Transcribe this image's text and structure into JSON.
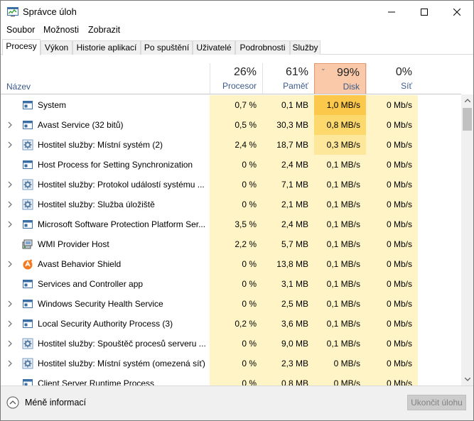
{
  "window": {
    "title": "Správce úloh"
  },
  "menu": [
    {
      "label": "Soubor"
    },
    {
      "label": "Možnosti"
    },
    {
      "label": "Zobrazit"
    }
  ],
  "tabs": [
    {
      "label": "Procesy",
      "active": true
    },
    {
      "label": "Výkon"
    },
    {
      "label": "Historie aplikací"
    },
    {
      "label": "Po spuštění"
    },
    {
      "label": "Uživatelé"
    },
    {
      "label": "Podrobnosti"
    },
    {
      "label": "Služby"
    }
  ],
  "columns": {
    "name": "Název",
    "cpu": {
      "pct": "26%",
      "label": "Procesor"
    },
    "mem": {
      "pct": "61%",
      "label": "Paměť"
    },
    "disk": {
      "pct": "99%",
      "label": "Disk"
    },
    "net": {
      "pct": "0%",
      "label": "Síť"
    }
  },
  "rows": [
    {
      "name": "System",
      "expand": false,
      "icon": "window-icon",
      "cpu": "0,7 %",
      "mem": "0,1 MB",
      "disk": "1,0 MB/s",
      "net": "0 Mb/s",
      "diskLevel": 3
    },
    {
      "name": "Avast Service (32 bitů)",
      "expand": true,
      "icon": "window-icon",
      "cpu": "0,5 %",
      "mem": "30,3 MB",
      "disk": "0,8 MB/s",
      "net": "0 Mb/s",
      "diskLevel": 2
    },
    {
      "name": "Hostitel služby: Místní systém (2)",
      "expand": true,
      "icon": "gear-icon",
      "cpu": "2,4 %",
      "mem": "18,7 MB",
      "disk": "0,3 MB/s",
      "net": "0 Mb/s",
      "diskLevel": 1
    },
    {
      "name": "Host Process for Setting Synchronization",
      "expand": false,
      "icon": "window-icon",
      "cpu": "0 %",
      "mem": "2,4 MB",
      "disk": "0,1 MB/s",
      "net": "0 Mb/s",
      "diskLevel": 0
    },
    {
      "name": "Hostitel služby: Protokol událostí systému ...",
      "expand": true,
      "icon": "gear-icon",
      "cpu": "0 %",
      "mem": "7,1 MB",
      "disk": "0,1 MB/s",
      "net": "0 Mb/s",
      "diskLevel": 0
    },
    {
      "name": "Hostitel služby: Služba úložiště",
      "expand": true,
      "icon": "gear-icon",
      "cpu": "0 %",
      "mem": "2,1 MB",
      "disk": "0,1 MB/s",
      "net": "0 Mb/s",
      "diskLevel": 0
    },
    {
      "name": "Microsoft Software Protection Platform Ser...",
      "expand": true,
      "icon": "window-icon",
      "cpu": "3,5 %",
      "mem": "2,4 MB",
      "disk": "0,1 MB/s",
      "net": "0 Mb/s",
      "diskLevel": 0
    },
    {
      "name": "WMI Provider Host",
      "expand": false,
      "icon": "wmi-icon",
      "cpu": "2,2 %",
      "mem": "5,7 MB",
      "disk": "0,1 MB/s",
      "net": "0 Mb/s",
      "diskLevel": 0
    },
    {
      "name": "Avast Behavior Shield",
      "expand": true,
      "icon": "avast-icon",
      "cpu": "0 %",
      "mem": "13,8 MB",
      "disk": "0,1 MB/s",
      "net": "0 Mb/s",
      "diskLevel": 0
    },
    {
      "name": "Services and Controller app",
      "expand": false,
      "icon": "window-icon",
      "cpu": "0 %",
      "mem": "3,1 MB",
      "disk": "0,1 MB/s",
      "net": "0 Mb/s",
      "diskLevel": 0
    },
    {
      "name": "Windows Security Health Service",
      "expand": true,
      "icon": "window-icon",
      "cpu": "0 %",
      "mem": "2,5 MB",
      "disk": "0,1 MB/s",
      "net": "0 Mb/s",
      "diskLevel": 0
    },
    {
      "name": "Local Security Authority Process (3)",
      "expand": true,
      "icon": "window-icon",
      "cpu": "0,2 %",
      "mem": "3,6 MB",
      "disk": "0,1 MB/s",
      "net": "0 Mb/s",
      "diskLevel": 0
    },
    {
      "name": "Hostitel služby: Spouštěč procesů serveru ...",
      "expand": true,
      "icon": "gear-icon",
      "cpu": "0 %",
      "mem": "9,0 MB",
      "disk": "0,1 MB/s",
      "net": "0 Mb/s",
      "diskLevel": 0
    },
    {
      "name": "Hostitel služby: Místní systém (omezená síť)",
      "expand": true,
      "icon": "gear-icon",
      "cpu": "0 %",
      "mem": "2,3 MB",
      "disk": "0 MB/s",
      "net": "0 Mb/s",
      "diskLevel": 0
    },
    {
      "name": "Client Server Runtime Process",
      "expand": false,
      "icon": "window-icon",
      "cpu": "0 %",
      "mem": "0,8 MB",
      "disk": "0 MB/s",
      "net": "0 Mb/s",
      "diskLevel": 0
    }
  ],
  "footer": {
    "less_label": "Méně informací",
    "end_task": "Ukončit úlohu"
  },
  "colors": {
    "heat0": "#fef4c5",
    "heat1": "#fde79a",
    "heat2": "#fcd86d",
    "heat3": "#fbc84b",
    "disk_header": "#f9c9a9",
    "accent_blue": "#3b5a8a"
  }
}
